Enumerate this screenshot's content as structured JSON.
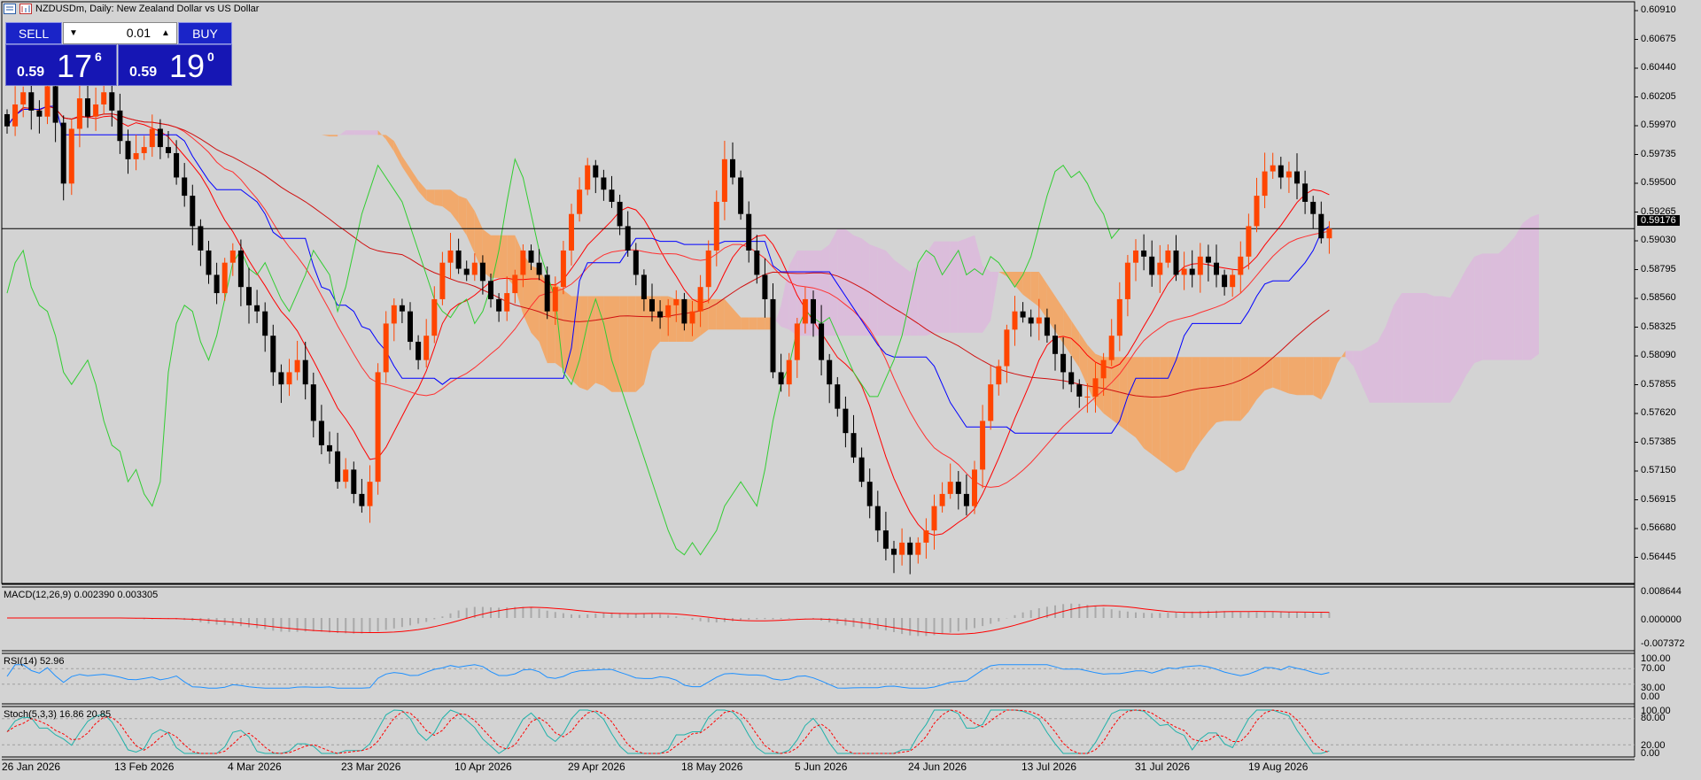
{
  "window": {
    "title": "NZDUSDm, Daily:  New Zealand Dollar vs US Dollar"
  },
  "trade": {
    "sell_label": "SELL",
    "buy_label": "BUY",
    "lot_value": "0.01",
    "sell_price": {
      "prefix": "0.59",
      "big": "17",
      "sup": "6"
    },
    "buy_price": {
      "prefix": "0.59",
      "big": "19",
      "sup": "0"
    }
  },
  "price_axis": {
    "labels": [
      "0.60910",
      "0.60675",
      "0.60440",
      "0.60205",
      "0.59970",
      "0.59735",
      "0.59500",
      "0.59265",
      "0.59030",
      "0.58795",
      "0.58560",
      "0.58325",
      "0.58090",
      "0.57855",
      "0.57620",
      "0.57385",
      "0.57150",
      "0.56915",
      "0.56680",
      "0.56445"
    ],
    "current_price": "0.59176"
  },
  "indicators": {
    "macd": {
      "label": "MACD(12,26,9) 0.002390 0.003305",
      "axis": [
        "0.008644",
        "0.000000",
        "-0.007372"
      ]
    },
    "rsi": {
      "label": "RSI(14) 52.96",
      "axis": [
        "100.00",
        "70.00",
        "30.00",
        "0.00"
      ]
    },
    "stoch": {
      "label": "Stoch(5,3,3) 16.86 20.85",
      "axis": [
        "100.00",
        "80.00",
        "20.00",
        "0.00"
      ]
    }
  },
  "time_axis": [
    "26 Jan 2026",
    "13 Feb 2026",
    "4 Mar 2026",
    "23 Mar 2026",
    "10 Apr 2026",
    "29 Apr 2026",
    "18 May 2026",
    "5 Jun 2026",
    "24 Jun 2026",
    "13 Jul 2026",
    "31 Jul 2026",
    "19 Aug 2026"
  ],
  "chart_data": {
    "type": "candlestick",
    "symbol": "NZDUSDm",
    "timeframe": "Daily",
    "ylim": [
      0.5633,
      0.61
    ],
    "closes": [
      0.6002,
      0.602,
      0.603,
      0.6015,
      0.601,
      0.6035,
      0.6005,
      0.5955,
      0.6,
      0.6025,
      0.601,
      0.602,
      0.603,
      0.6015,
      0.599,
      0.5975,
      0.598,
      0.5985,
      0.6,
      0.5985,
      0.598,
      0.596,
      0.5945,
      0.592,
      0.59,
      0.588,
      0.5865,
      0.589,
      0.59,
      0.587,
      0.5855,
      0.585,
      0.583,
      0.58,
      0.579,
      0.58,
      0.581,
      0.579,
      0.576,
      0.574,
      0.5735,
      0.571,
      0.572,
      0.57,
      0.569,
      0.571,
      0.58,
      0.584,
      0.5855,
      0.585,
      0.5825,
      0.581,
      0.583,
      0.586,
      0.589,
      0.59,
      0.5885,
      0.588,
      0.589,
      0.5875,
      0.586,
      0.585,
      0.5865,
      0.588,
      0.59,
      0.589,
      0.588,
      0.585,
      0.587,
      0.59,
      0.593,
      0.595,
      0.597,
      0.596,
      0.595,
      0.594,
      0.592,
      0.59,
      0.588,
      0.586,
      0.585,
      0.5845,
      0.5855,
      0.586,
      0.584,
      0.585,
      0.587,
      0.59,
      0.594,
      0.5975,
      0.596,
      0.593,
      0.59,
      0.588,
      0.586,
      0.58,
      0.579,
      0.581,
      0.584,
      0.586,
      0.584,
      0.581,
      0.579,
      0.577,
      0.575,
      0.573,
      0.571,
      0.569,
      0.567,
      0.5655,
      0.565,
      0.566,
      0.565,
      0.566,
      0.567,
      0.569,
      0.57,
      0.571,
      0.57,
      0.569,
      0.572,
      0.576,
      0.579,
      0.5805,
      0.5835,
      0.585,
      0.5845,
      0.584,
      0.5845,
      0.583,
      0.5815,
      0.58,
      0.579,
      0.578,
      0.578,
      0.5795,
      0.581,
      0.583,
      0.586,
      0.589,
      0.59,
      0.5895,
      0.588,
      0.589,
      0.59,
      0.588,
      0.5885,
      0.588,
      0.5895,
      0.589,
      0.588,
      0.587,
      0.588,
      0.5895,
      0.592,
      0.5945,
      0.5965,
      0.597,
      0.596,
      0.5965,
      0.5955,
      0.594,
      0.593,
      0.591,
      0.5918
    ]
  }
}
